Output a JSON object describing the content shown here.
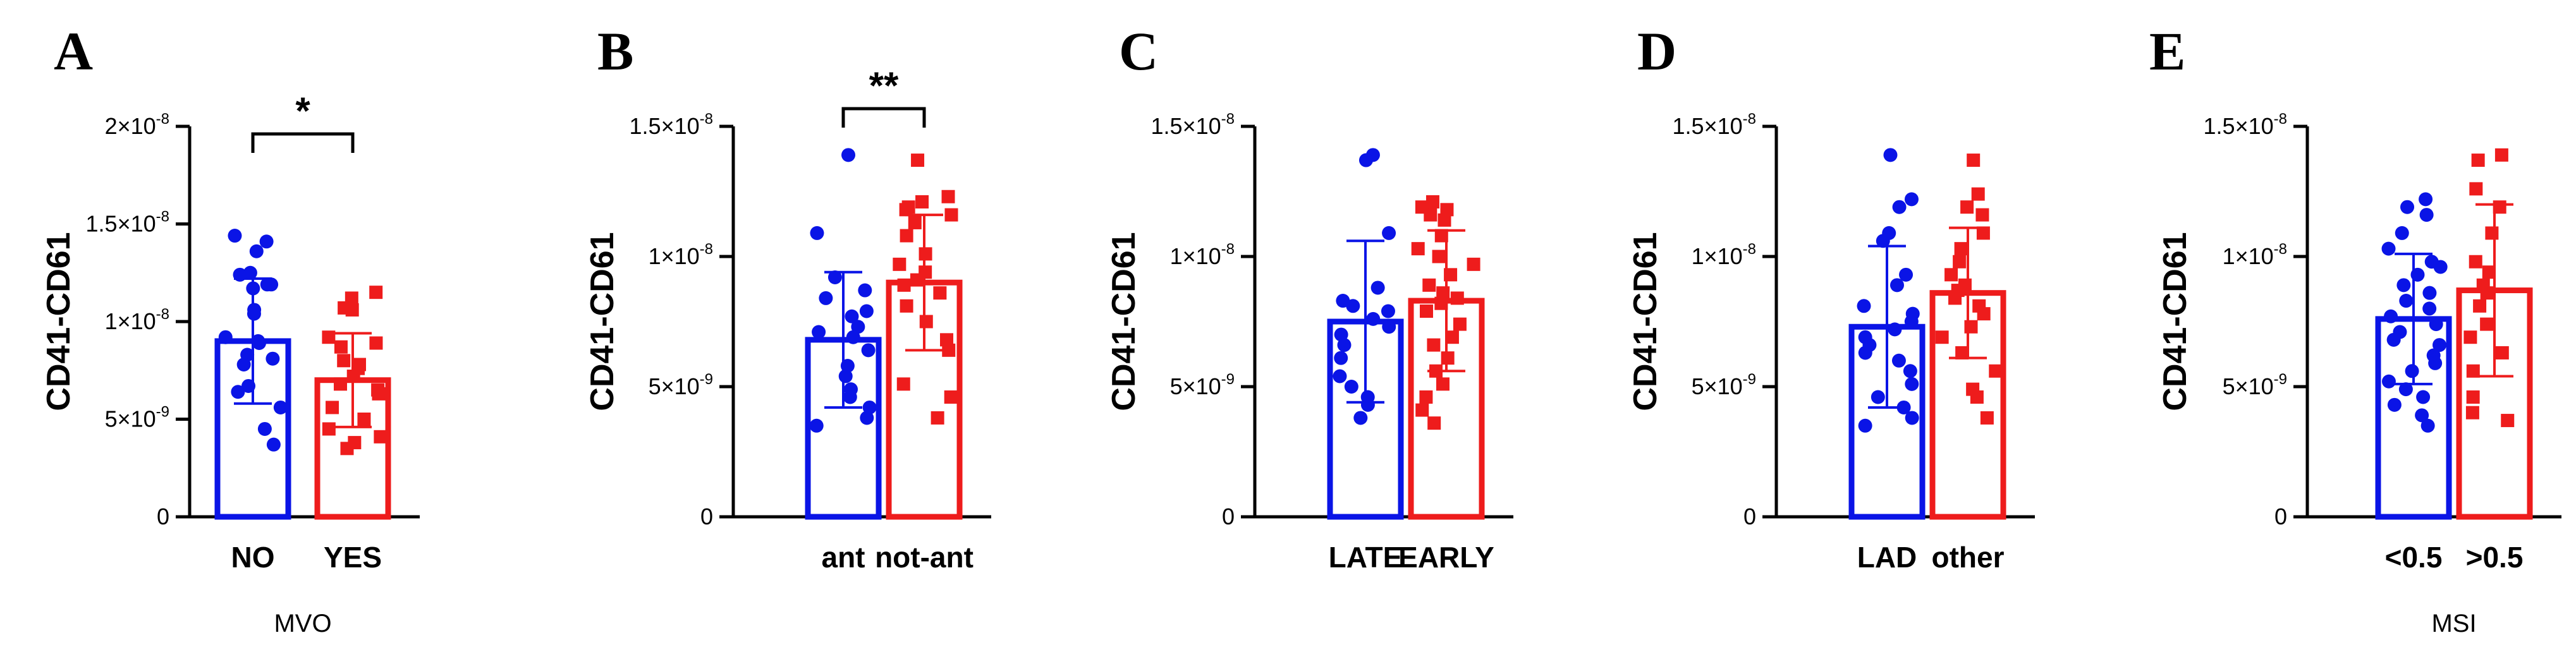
{
  "colors": {
    "blue": "#0a14e6",
    "red": "#ee1c1c",
    "axis": "#000000"
  },
  "chart_data": [
    {
      "panel": "A",
      "type": "bar",
      "ylabel": "CD41-CD61",
      "xlabel": "MVO",
      "ylim": [
        0,
        2e-08
      ],
      "yticks": [
        {
          "value": 0,
          "mant": "0",
          "exp": ""
        },
        {
          "value": 5e-09,
          "mant": "5×10",
          "exp": "-9"
        },
        {
          "value": 1e-08,
          "mant": "1×10",
          "exp": "-8"
        },
        {
          "value": 1.5e-08,
          "mant": "1.5×10",
          "exp": "-8"
        },
        {
          "value": 2e-08,
          "mant": "2×10",
          "exp": "-8"
        }
      ],
      "categories": [
        "NO",
        "YES"
      ],
      "significance": "*",
      "series": [
        {
          "name": "NO",
          "color": "blue",
          "marker": "circle",
          "mean": 9e-09,
          "sd": 3.2e-09,
          "points": [
            1.44e-08,
            1.41e-08,
            1.36e-08,
            1.25e-08,
            1.24e-08,
            1.19e-08,
            1.19e-08,
            1.17e-08,
            1.06e-08,
            1.04e-08,
            9.2e-09,
            9e-09,
            8.9e-09,
            8.3e-09,
            8.1e-09,
            7.8e-09,
            6.7e-09,
            6.4e-09,
            5.6e-09,
            4.5e-09,
            3.7e-09
          ]
        },
        {
          "name": "YES",
          "color": "red",
          "marker": "square",
          "mean": 7e-09,
          "sd": 2.4e-09,
          "points": [
            1.15e-08,
            1.12e-08,
            1.07e-08,
            1.06e-08,
            9.2e-09,
            8.9e-09,
            8.7e-09,
            8e-09,
            7.8e-09,
            7.6e-09,
            7.2e-09,
            6.8e-09,
            6.5e-09,
            6.3e-09,
            5.6e-09,
            5e-09,
            4.5e-09,
            4.1e-09,
            3.8e-09,
            3.5e-09
          ]
        }
      ]
    },
    {
      "panel": "B",
      "type": "bar",
      "ylabel": "CD41-CD61",
      "xlabel": "",
      "ylim": [
        0,
        1.5e-08
      ],
      "yticks": [
        {
          "value": 0,
          "mant": "0",
          "exp": ""
        },
        {
          "value": 5e-09,
          "mant": "5×10",
          "exp": "-9"
        },
        {
          "value": 1e-08,
          "mant": "1×10",
          "exp": "-8"
        },
        {
          "value": 1.5e-08,
          "mant": "1.5×10",
          "exp": "-8"
        }
      ],
      "categories": [
        "ant",
        "not-ant"
      ],
      "significance": "**",
      "series": [
        {
          "name": "ant",
          "color": "blue",
          "marker": "circle",
          "mean": 6.8e-09,
          "sd": 2.6e-09,
          "points": [
            1.39e-08,
            1.09e-08,
            9.2e-09,
            8.7e-09,
            8.4e-09,
            7.9e-09,
            7.7e-09,
            7.3e-09,
            7.1e-09,
            6.9e-09,
            6.4e-09,
            5.8e-09,
            5.4e-09,
            4.9e-09,
            4.6e-09,
            4.2e-09,
            3.8e-09,
            3.5e-09
          ]
        },
        {
          "name": "not-ant",
          "color": "red",
          "marker": "square",
          "mean": 9e-09,
          "sd": 2.6e-09,
          "points": [
            1.37e-08,
            1.23e-08,
            1.21e-08,
            1.19e-08,
            1.18e-08,
            1.16e-08,
            1.13e-08,
            1.08e-08,
            1.01e-08,
            9.7e-09,
            9.4e-09,
            9.1e-09,
            8.9e-09,
            8.6e-09,
            8.1e-09,
            7.5e-09,
            6.8e-09,
            6.4e-09,
            5.1e-09,
            4.6e-09,
            3.8e-09
          ]
        }
      ]
    },
    {
      "panel": "C",
      "type": "bar",
      "ylabel": "CD41-CD61",
      "xlabel": "",
      "ylim": [
        0,
        1.5e-08
      ],
      "yticks": [
        {
          "value": 0,
          "mant": "0",
          "exp": ""
        },
        {
          "value": 5e-09,
          "mant": "5×10",
          "exp": "-9"
        },
        {
          "value": 1e-08,
          "mant": "1×10",
          "exp": "-8"
        },
        {
          "value": 1.5e-08,
          "mant": "1.5×10",
          "exp": "-8"
        }
      ],
      "categories": [
        "LATE",
        "EARLY"
      ],
      "significance": "",
      "series": [
        {
          "name": "LATE",
          "color": "blue",
          "marker": "circle",
          "mean": 7.5e-09,
          "sd": 3.1e-09,
          "points": [
            1.39e-08,
            1.37e-08,
            1.09e-08,
            8.8e-09,
            8.3e-09,
            8.1e-09,
            7.9e-09,
            7.6e-09,
            7.3e-09,
            7e-09,
            6.6e-09,
            6.1e-09,
            5.4e-09,
            5e-09,
            4.6e-09,
            4.3e-09,
            3.8e-09
          ]
        },
        {
          "name": "EARLY",
          "color": "red",
          "marker": "square",
          "mean": 8.3e-09,
          "sd": 2.7e-09,
          "points": [
            1.21e-08,
            1.19e-08,
            1.18e-08,
            1.16e-08,
            1.14e-08,
            1.08e-08,
            1.03e-08,
            1e-08,
            9.7e-09,
            9.3e-09,
            8.9e-09,
            8.6e-09,
            8.4e-09,
            8.2e-09,
            7.9e-09,
            7.4e-09,
            6.9e-09,
            6.6e-09,
            6.1e-09,
            5.6e-09,
            5.1e-09,
            4.6e-09,
            4.1e-09,
            3.6e-09
          ]
        }
      ]
    },
    {
      "panel": "D",
      "type": "bar",
      "ylabel": "CD41-CD61",
      "xlabel": "",
      "ylim": [
        0,
        1.5e-08
      ],
      "yticks": [
        {
          "value": 0,
          "mant": "0",
          "exp": ""
        },
        {
          "value": 5e-09,
          "mant": "5×10",
          "exp": "-9"
        },
        {
          "value": 1e-08,
          "mant": "1×10",
          "exp": "-8"
        },
        {
          "value": 1.5e-08,
          "mant": "1.5×10",
          "exp": "-8"
        }
      ],
      "categories": [
        "LAD",
        "other"
      ],
      "significance": "",
      "series": [
        {
          "name": "LAD",
          "color": "blue",
          "marker": "circle",
          "mean": 7.3e-09,
          "sd": 3.1e-09,
          "points": [
            1.39e-08,
            1.22e-08,
            1.19e-08,
            1.09e-08,
            1.06e-08,
            9.3e-09,
            8.9e-09,
            8.1e-09,
            7.8e-09,
            7.5e-09,
            7.2e-09,
            6.9e-09,
            6.6e-09,
            6.3e-09,
            6e-09,
            5.6e-09,
            5.1e-09,
            4.6e-09,
            4.2e-09,
            3.8e-09,
            3.5e-09
          ]
        },
        {
          "name": "other",
          "color": "red",
          "marker": "square",
          "mean": 8.6e-09,
          "sd": 2.5e-09,
          "points": [
            1.37e-08,
            1.24e-08,
            1.19e-08,
            1.16e-08,
            1.09e-08,
            1.03e-08,
            9.8e-09,
            9.3e-09,
            8.9e-09,
            8.7e-09,
            8.4e-09,
            8.1e-09,
            7.8e-09,
            7.3e-09,
            6.9e-09,
            6.3e-09,
            5.6e-09,
            4.9e-09,
            4.6e-09,
            3.8e-09
          ]
        }
      ]
    },
    {
      "panel": "E",
      "type": "bar",
      "ylabel": "CD41-CD61",
      "xlabel": "MSI",
      "ylim": [
        0,
        1.5e-08
      ],
      "yticks": [
        {
          "value": 0,
          "mant": "0",
          "exp": ""
        },
        {
          "value": 5e-09,
          "mant": "5×10",
          "exp": "-9"
        },
        {
          "value": 1e-08,
          "mant": "1×10",
          "exp": "-8"
        },
        {
          "value": 1.5e-08,
          "mant": "1.5×10",
          "exp": "-8"
        }
      ],
      "categories": [
        "<0.5",
        ">0.5"
      ],
      "significance": "",
      "series": [
        {
          "name": "<0.5",
          "color": "blue",
          "marker": "circle",
          "mean": 7.6e-09,
          "sd": 2.5e-09,
          "points": [
            1.22e-08,
            1.19e-08,
            1.16e-08,
            1.09e-08,
            1.03e-08,
            9.8e-09,
            9.6e-09,
            9.3e-09,
            8.9e-09,
            8.6e-09,
            8.3e-09,
            8e-09,
            7.7e-09,
            7.4e-09,
            7.1e-09,
            6.8e-09,
            6.6e-09,
            6.2e-09,
            5.9e-09,
            5.6e-09,
            5.2e-09,
            4.9e-09,
            4.6e-09,
            4.3e-09,
            3.9e-09,
            3.5e-09
          ]
        },
        {
          "name": ">0.5",
          "color": "red",
          "marker": "square",
          "mean": 8.7e-09,
          "sd": 3.3e-09,
          "points": [
            1.39e-08,
            1.37e-08,
            1.26e-08,
            1.19e-08,
            1.09e-08,
            9.8e-09,
            9.4e-09,
            8.9e-09,
            8.6e-09,
            8.1e-09,
            7.4e-09,
            6.9e-09,
            6.3e-09,
            5.6e-09,
            4.6e-09,
            4e-09,
            3.7e-09
          ]
        }
      ]
    }
  ]
}
